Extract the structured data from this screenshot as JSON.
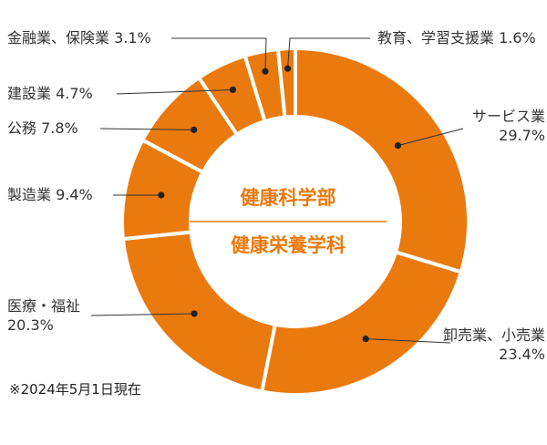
{
  "chart_data": {
    "type": "pie",
    "variant": "donut",
    "center_title": {
      "line1": "健康科学部",
      "line2": "健康栄養学科"
    },
    "slices": [
      {
        "label": "サービス業",
        "value": 29.7,
        "value_text": "29.7%"
      },
      {
        "label": "卸売業、小売業",
        "value": 23.4,
        "value_text": "23.4%"
      },
      {
        "label": "医療・福祉",
        "value": 20.3,
        "value_text": "20.3%"
      },
      {
        "label": "製造業",
        "value": 9.4,
        "value_text": "9.4%"
      },
      {
        "label": "公務",
        "value": 7.8,
        "value_text": "7.8%"
      },
      {
        "label": "建設業",
        "value": 4.7,
        "value_text": "4.7%"
      },
      {
        "label": "金融業、保険業",
        "value": 3.1,
        "value_text": "3.1%"
      },
      {
        "label": "教育、学習支援業",
        "value": 1.6,
        "value_text": "1.6%"
      }
    ],
    "colors": {
      "slice": "#EA7A0E",
      "separator": "#ffffff",
      "center_text": "#EA7A0E",
      "leader": "#333333",
      "dot": "#222222"
    }
  },
  "footnote": "※2024年5月1日現在"
}
